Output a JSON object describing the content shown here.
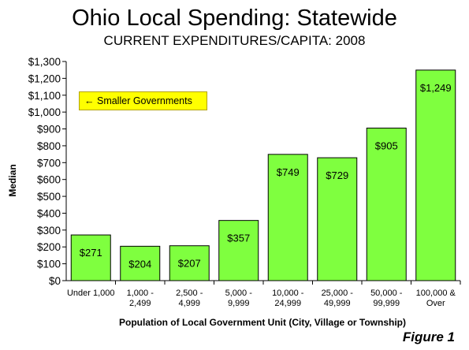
{
  "chart_data": {
    "type": "bar",
    "title": "Ohio Local Spending: Statewide",
    "subtitle": "CURRENT EXPENDITURES/CAPITA: 2008",
    "xlabel": "Population of Local Government Unit (City, Village or Township)",
    "ylabel": "Median",
    "categories": [
      [
        "Under 1,000"
      ],
      [
        "1,000 -",
        "2,499"
      ],
      [
        "2,500 -",
        "4,999"
      ],
      [
        "5,000 -",
        "9,999"
      ],
      [
        "10,000 -",
        "24,999"
      ],
      [
        "25,000 -",
        "49,999"
      ],
      [
        "50,000 -",
        "99,999"
      ],
      [
        "100,000 &",
        "Over"
      ]
    ],
    "values": [
      271,
      204,
      207,
      357,
      749,
      729,
      905,
      1249
    ],
    "data_labels": [
      "$271",
      "$204",
      "$207",
      "$357",
      "$749",
      "$729",
      "$905",
      "$1,249"
    ],
    "ylim": [
      0,
      1300
    ],
    "yticks": [
      0,
      100,
      200,
      300,
      400,
      500,
      600,
      700,
      800,
      900,
      1000,
      1100,
      1200,
      1300
    ],
    "ytick_labels": [
      "$0",
      "$100",
      "$200",
      "$300",
      "$400",
      "$500",
      "$600",
      "$700",
      "$800",
      "$900",
      "$1,000",
      "$1,100",
      "$1,200",
      "$1,300"
    ],
    "grid": false,
    "bar_color": "#7fff3f",
    "bar_edge_color": "#000000"
  },
  "annotation": {
    "arrow": "←",
    "text": "Smaller Governments",
    "color": "#ffff00"
  },
  "figure_label": "Figure 1"
}
